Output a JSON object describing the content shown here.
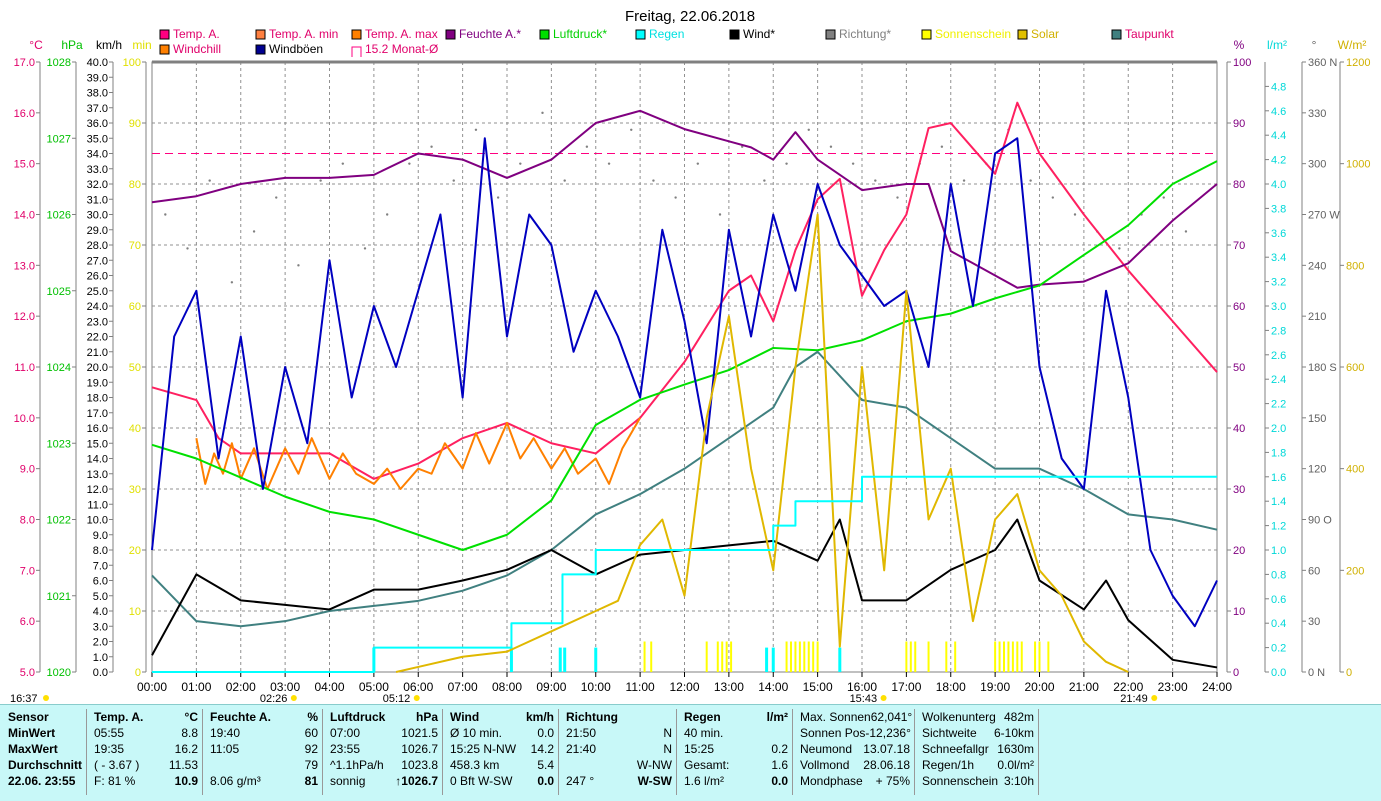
{
  "chart_data": {
    "type": "line",
    "title": "Freitag, 22.06.2018",
    "x_range": [
      0,
      24
    ],
    "x_ticks": [
      "00:00",
      "01:00",
      "02:00",
      "03:00",
      "04:00",
      "05:00",
      "06:00",
      "07:00",
      "08:00",
      "09:00",
      "10:00",
      "11:00",
      "12:00",
      "13:00",
      "14:00",
      "15:00",
      "16:00",
      "17:00",
      "18:00",
      "19:00",
      "20:00",
      "21:00",
      "22:00",
      "23:00",
      "24:00"
    ],
    "grid": true,
    "legend": [
      {
        "label": "Temp. A.",
        "color": "#ff0080",
        "text_color": "#e0006a"
      },
      {
        "label": "Windchill",
        "color": "#ff8000",
        "text_color": "#e0006a"
      },
      {
        "label": "Temp. A. min",
        "color": "#ff8040",
        "text_color": "#e0006a"
      },
      {
        "label": "Windböen",
        "color": "#000090",
        "text_color": "#000000"
      },
      {
        "label": "Temp. A. max",
        "color": "#ff8000",
        "text_color": "#e0006a"
      },
      {
        "label": "15.2 Monat-Ø",
        "color": "#ff0080",
        "text_color": "#e0006a"
      },
      {
        "label": "Feuchte A.*",
        "color": "#800080",
        "text_color": "#800080"
      },
      {
        "label": "Luftdruck*",
        "color": "#00e000",
        "text_color": "#00d000"
      },
      {
        "label": "Regen",
        "color": "#00ffff",
        "text_color": "#00e0e0"
      },
      {
        "label": "Wind*",
        "color": "#000000",
        "text_color": "#000000"
      },
      {
        "label": "Richtung*",
        "color": "#808080",
        "text_color": "#808080"
      },
      {
        "label": "Sonnenschein",
        "color": "#ffff00",
        "text_color": "#f0f000"
      },
      {
        "label": "Solar",
        "color": "#e0c000",
        "text_color": "#d0b000"
      },
      {
        "label": "Taupunkt",
        "color": "#408080",
        "text_color": "#e0006a"
      }
    ],
    "axes": {
      "temp": {
        "unit": "°C",
        "min": 5,
        "max": 17,
        "step": 1,
        "decimals": 1,
        "color": "#e0006a"
      },
      "pressure": {
        "unit": "hPa",
        "min": 1020,
        "max": 1028,
        "step": 1,
        "decimals": 0,
        "color": "#00c000"
      },
      "wind": {
        "unit": "km/h",
        "min": 0,
        "max": 40,
        "step": 1,
        "decimals": 1,
        "color": "#000000"
      },
      "minutes": {
        "unit": "min",
        "min": 0,
        "max": 100,
        "step": 10,
        "decimals": 0,
        "color": "#e0e000"
      },
      "humidity": {
        "unit": "%",
        "min": 0,
        "max": 100,
        "step": 10,
        "decimals": 0,
        "color": "#800080"
      },
      "rain": {
        "unit": "l/m²",
        "min": 0,
        "max": 4.8,
        "step": 0.2,
        "decimals": 1,
        "color": "#00d8d8"
      },
      "direction": {
        "unit": "°",
        "min": 0,
        "max": 360,
        "step": 30,
        "decimals": 0,
        "color": "#606060",
        "compass": {
          "360": "N",
          "270": "W",
          "180": "S",
          "90": "O",
          "0": "N"
        }
      },
      "solar": {
        "unit": "W/m²",
        "min": 0,
        "max": 1200,
        "step": 200,
        "decimals": 0,
        "color": "#d0b000"
      }
    },
    "month_avg_temp": 15.2,
    "series": [
      {
        "name": "Temp. A.",
        "axis": "temp",
        "color": "#ff2060",
        "x": [
          0,
          1,
          1.5,
          2,
          3,
          4,
          5,
          6,
          7,
          8,
          9,
          10,
          11,
          12,
          13,
          13.5,
          14,
          14.5,
          15,
          15.5,
          16,
          16.5,
          17,
          17.5,
          18,
          18.5,
          19,
          19.5,
          20,
          21,
          22,
          23,
          24
        ],
        "values": [
          10.6,
          10.35,
          9.6,
          9.3,
          9.3,
          9.3,
          8.8,
          9.1,
          9.6,
          9.9,
          9.5,
          9.3,
          10.0,
          11.1,
          12.5,
          12.8,
          11.9,
          13.3,
          14.3,
          14.7,
          12.4,
          13.3,
          14.0,
          15.7,
          15.8,
          15.3,
          14.8,
          16.2,
          15.2,
          14.0,
          12.9,
          11.9,
          10.9
        ]
      },
      {
        "name": "Temp. A. max",
        "axis": "temp",
        "color": "#ff8000",
        "x": [
          1,
          1.2,
          1.4,
          1.6,
          1.8,
          2,
          2.3,
          2.6,
          3,
          3.3,
          3.6,
          4,
          4.3,
          4.6,
          5,
          5.3,
          5.6,
          6,
          6.3,
          6.6,
          7,
          7.3,
          7.6,
          8,
          8.3,
          8.6,
          9,
          9.3,
          9.6,
          10,
          10.3,
          10.6,
          11
        ],
        "values": [
          9.6,
          8.7,
          9.3,
          8.9,
          9.5,
          8.8,
          9.4,
          8.6,
          9.4,
          8.9,
          9.6,
          8.8,
          9.3,
          8.9,
          8.7,
          9.0,
          8.6,
          9.0,
          8.9,
          9.5,
          9.0,
          9.7,
          9.1,
          9.9,
          9.2,
          9.6,
          9.0,
          9.4,
          8.9,
          9.2,
          8.7,
          9.4,
          10.0
        ]
      },
      {
        "name": "Feuchte A.*",
        "axis": "humidity",
        "color": "#800080",
        "x": [
          0,
          1,
          2,
          3,
          4,
          5,
          6,
          7,
          8,
          9,
          10,
          11,
          12,
          13,
          13.5,
          14,
          14.5,
          15,
          16,
          17,
          17.5,
          18,
          18.5,
          19,
          19.5,
          20,
          21,
          22,
          23,
          24
        ],
        "values": [
          77,
          78,
          80,
          81,
          81,
          81.5,
          85,
          84,
          81,
          84,
          90,
          92,
          89,
          87,
          86,
          84,
          88.5,
          84,
          79,
          80,
          80,
          69,
          67,
          65,
          63,
          63.5,
          64,
          67,
          74,
          80
        ]
      },
      {
        "name": "Luftdruck*",
        "axis": "pressure",
        "color": "#00e000",
        "x": [
          0,
          1,
          2,
          3,
          4,
          5,
          6,
          7,
          8,
          9,
          10,
          11,
          12,
          13,
          14,
          15,
          16,
          17,
          18,
          19,
          20,
          21,
          22,
          23,
          24
        ],
        "values": [
          1022.98,
          1022.8,
          1022.55,
          1022.3,
          1022.1,
          1022.0,
          1021.8,
          1021.6,
          1021.8,
          1022.25,
          1023.24,
          1023.57,
          1023.77,
          1023.96,
          1024.25,
          1024.22,
          1024.35,
          1024.6,
          1024.7,
          1024.9,
          1025.07,
          1025.47,
          1025.86,
          1026.4,
          1026.7
        ]
      },
      {
        "name": "Taupunkt",
        "axis": "temp",
        "color": "#408080",
        "x": [
          0,
          1,
          2,
          3,
          4,
          5,
          6,
          7,
          8,
          9,
          10,
          11,
          12,
          13,
          14,
          14.5,
          15,
          16,
          17,
          18,
          19,
          20,
          21,
          22,
          23,
          24
        ],
        "values": [
          6.9,
          6.0,
          5.9,
          6.0,
          6.2,
          6.3,
          6.4,
          6.6,
          6.9,
          7.4,
          8.1,
          8.5,
          9.0,
          9.6,
          10.2,
          11.0,
          11.3,
          10.35,
          10.2,
          9.6,
          9.0,
          9.0,
          8.6,
          8.1,
          8.0,
          7.8
        ]
      },
      {
        "name": "Windböen",
        "axis": "wind",
        "color": "#0000c0",
        "x": [
          0,
          0.5,
          1,
          1.5,
          2,
          2.5,
          3,
          3.5,
          4,
          4.5,
          5,
          5.5,
          6,
          6.5,
          7,
          7.5,
          8,
          8.5,
          9,
          9.5,
          10,
          10.5,
          11,
          11.5,
          12,
          12.5,
          13,
          13.5,
          14,
          14.5,
          15,
          15.5,
          16,
          16.5,
          17,
          17.5,
          18,
          18.5,
          19,
          19.5,
          20,
          20.5,
          21,
          21.5,
          22,
          22.5,
          23,
          23.5,
          24
        ],
        "values": [
          8,
          22,
          25,
          14,
          22,
          12,
          20,
          15,
          27,
          18,
          24,
          20,
          25,
          30,
          18,
          35,
          22,
          30,
          28,
          21,
          25,
          22,
          18,
          29,
          23,
          15,
          29,
          22,
          30,
          25,
          32,
          28,
          26,
          24,
          25,
          20,
          32,
          24,
          34,
          35,
          20,
          14,
          12,
          25,
          18,
          8,
          5,
          3,
          6
        ]
      },
      {
        "name": "Wind*",
        "axis": "wind",
        "color": "#000000",
        "x": [
          0,
          1,
          2,
          3,
          4,
          5,
          6,
          7,
          8,
          9,
          10,
          11,
          12,
          13,
          14,
          15,
          15.5,
          16,
          17,
          18,
          19,
          19.5,
          20,
          21,
          21.5,
          22,
          23,
          24
        ],
        "values": [
          1.1,
          6.4,
          4.7,
          4.4,
          4.1,
          5.4,
          5.4,
          6.0,
          6.7,
          8.0,
          6.4,
          7.7,
          8.0,
          8.3,
          8.6,
          7.3,
          10,
          4.7,
          4.7,
          6.7,
          8.0,
          10,
          6.0,
          4.1,
          6.0,
          3.4,
          0.8,
          0.3
        ]
      },
      {
        "name": "Solar",
        "axis": "solar",
        "color": "#e0b800",
        "x": [
          5.5,
          6,
          7,
          8,
          9,
          10,
          10.5,
          11,
          11.5,
          12,
          12.5,
          13,
          13.5,
          14,
          14.5,
          15,
          15.5,
          16,
          16.5,
          17,
          17.5,
          18,
          18.5,
          19,
          19.5,
          20,
          20.5,
          21,
          21.5,
          22
        ],
        "values": [
          0,
          10,
          30,
          40,
          80,
          120,
          140,
          250,
          300,
          150,
          500,
          700,
          400,
          200,
          600,
          900,
          50,
          600,
          200,
          750,
          300,
          400,
          100,
          300,
          350,
          200,
          150,
          60,
          20,
          0
        ]
      },
      {
        "name": "Regen",
        "axis": "rain",
        "color": "#00ffff",
        "step": true,
        "x": [
          0,
          5.0,
          8.1,
          9.25,
          10.0,
          14.0,
          14.5,
          16.0,
          24
        ],
        "values": [
          0,
          0.2,
          0.4,
          0.8,
          1.0,
          1.2,
          1.4,
          1.6,
          1.6
        ]
      }
    ],
    "direction_dots": {
      "axis": "direction",
      "color": "#808080",
      "x": [
        0.3,
        0.8,
        1.3,
        1.8,
        2.3,
        2.8,
        3.3,
        3.8,
        4.3,
        4.8,
        5.3,
        5.8,
        6.3,
        6.8,
        7.3,
        7.8,
        8.3,
        8.8,
        9.3,
        9.8,
        10.3,
        10.8,
        11.3,
        11.8,
        12.3,
        12.8,
        13.3,
        13.8,
        14.3,
        14.8,
        15.3,
        15.8,
        16.3,
        16.8,
        17.3,
        17.8,
        18.3,
        18.8,
        19.3,
        19.8,
        20.3,
        20.8,
        21.3,
        21.8,
        22.3,
        22.8,
        23.3
      ],
      "values": [
        270,
        250,
        290,
        230,
        260,
        280,
        240,
        290,
        300,
        250,
        270,
        300,
        310,
        290,
        320,
        280,
        300,
        330,
        290,
        310,
        300,
        320,
        290,
        280,
        300,
        270,
        310,
        290,
        300,
        320,
        310,
        300,
        290,
        280,
        300,
        310,
        290,
        300,
        320,
        290,
        280,
        270,
        260,
        250,
        270,
        280,
        260
      ]
    },
    "sunshine_minutes": {
      "axis": "minutes",
      "color": "#ffff00",
      "x": [
        11.1,
        11.25,
        12.5,
        12.75,
        12.85,
        12.95,
        13.05,
        14.3,
        14.4,
        14.5,
        14.6,
        14.7,
        14.8,
        14.9,
        15.0,
        17.0,
        17.1,
        17.2,
        17.5,
        17.9,
        18.1,
        19.0,
        19.1,
        19.2,
        19.3,
        19.4,
        19.5,
        19.6,
        19.9,
        20.0,
        20.2
      ],
      "value": 5
    },
    "rain_events": {
      "axis": "rain",
      "color": "#00ffff",
      "x": [
        5.0,
        8.1,
        9.2,
        9.3,
        10.0,
        13.85,
        14.0,
        15.5
      ],
      "value": 0.2
    },
    "sun_moon_markers": [
      {
        "label": "16:37",
        "x": -1
      },
      {
        "label": "02:26",
        "x": 2.43
      },
      {
        "label": "05:12",
        "x": 5.2
      },
      {
        "label": "15:43",
        "x": 15.72
      },
      {
        "label": "21:49",
        "x": 21.82
      }
    ]
  },
  "table": {
    "sensor": [
      "Sensor",
      "MinWert",
      "MaxWert",
      "Durchschnitt",
      "22.06. 23:55"
    ],
    "temp": {
      "head": [
        "Temp. A.",
        "°C"
      ],
      "rows": [
        [
          "05:55",
          "8.8"
        ],
        [
          "19:35",
          "16.2"
        ],
        [
          "( - 3.67 )",
          "11.53"
        ],
        [
          "F: 81 %",
          "10.9"
        ]
      ]
    },
    "hum": {
      "head": [
        "Feuchte A.",
        "%"
      ],
      "rows": [
        [
          "19:40",
          "60"
        ],
        [
          "11:05",
          "92"
        ],
        [
          "",
          "79"
        ],
        [
          "8.06 g/m³",
          "81"
        ]
      ]
    },
    "press": {
      "head": [
        "Luftdruck",
        "hPa"
      ],
      "rows": [
        [
          "07:00",
          "1021.5"
        ],
        [
          "23:55",
          "1026.7"
        ],
        [
          "^1.1hPa/h",
          "1023.8"
        ],
        [
          "sonnig",
          "↑1026.7"
        ]
      ]
    },
    "wind": {
      "head": [
        "Wind",
        "km/h"
      ],
      "rows": [
        [
          "Ø 10 min.",
          "0.0"
        ],
        [
          "15:25    N-NW",
          "14.2"
        ],
        [
          "458.3 km",
          "5.4"
        ],
        [
          "0 Bft W-SW",
          "0.0"
        ]
      ]
    },
    "dir": {
      "head": [
        "Richtung",
        ""
      ],
      "rows": [
        [
          "21:50",
          "N"
        ],
        [
          "21:40",
          "N"
        ],
        [
          "",
          "W-NW"
        ],
        [
          "247 °",
          "W-SW"
        ]
      ]
    },
    "rain": {
      "head": [
        "Regen",
        "l/m²"
      ],
      "rows": [
        [
          "40 min.",
          ""
        ],
        [
          "15:25",
          "0.2"
        ],
        [
          "Gesamt:",
          "1.6"
        ],
        [
          "1.6 l/m²",
          "0.0"
        ]
      ]
    },
    "sun": {
      "rows": [
        [
          "Max. Sonnen",
          "62,041°"
        ],
        [
          "Sonnen Pos",
          "-12,236°"
        ],
        [
          "Neumond",
          "13.07.18"
        ],
        [
          "Vollmond",
          "28.06.18"
        ],
        [
          "Mondphase",
          "+ 75%"
        ]
      ]
    },
    "misc": {
      "rows": [
        [
          "Wolkenunterg",
          "482m"
        ],
        [
          "Sichtweite",
          "6-10km"
        ],
        [
          "Schneefallgr",
          "1630m"
        ],
        [
          "Regen/1h",
          "0.0l/m²"
        ],
        [
          "Sonnenschein",
          "3:10h"
        ]
      ]
    }
  }
}
